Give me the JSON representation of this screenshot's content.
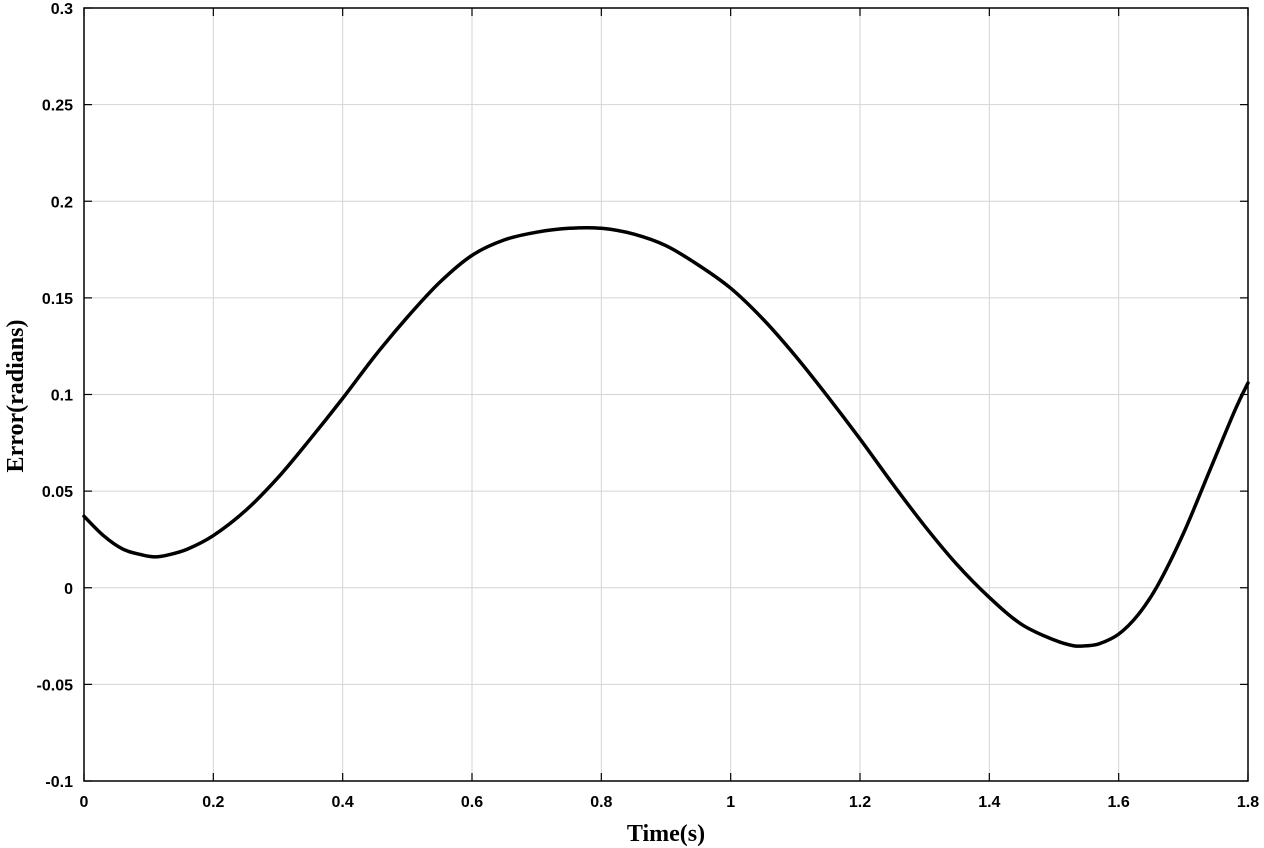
{
  "chart_data": {
    "type": "line",
    "xlabel": "Time(s)",
    "ylabel": "Error(radians)",
    "xlim": [
      0,
      1.8
    ],
    "ylim": [
      -0.1,
      0.3
    ],
    "xticks": [
      0,
      0.2,
      0.4,
      0.6,
      0.8,
      1,
      1.2,
      1.4,
      1.6,
      1.8
    ],
    "xtick_labels": [
      "0",
      "0.2",
      "0.4",
      "0.6",
      "0.8",
      "1",
      "1.2",
      "1.4",
      "1.6",
      "1.8"
    ],
    "yticks": [
      -0.1,
      -0.05,
      0,
      0.05,
      0.1,
      0.15,
      0.2,
      0.25,
      0.3
    ],
    "ytick_labels": [
      "-0.1",
      "-0.05",
      "0",
      "0.05",
      "0.1",
      "0.15",
      "0.2",
      "0.25",
      "0.3"
    ],
    "grid": true,
    "series": [
      {
        "color": "#000000",
        "x": [
          0,
          0.03,
          0.06,
          0.09,
          0.11,
          0.13,
          0.16,
          0.2,
          0.25,
          0.3,
          0.35,
          0.4,
          0.45,
          0.5,
          0.55,
          0.6,
          0.65,
          0.7,
          0.75,
          0.8,
          0.85,
          0.9,
          0.95,
          1.0,
          1.05,
          1.1,
          1.15,
          1.2,
          1.25,
          1.3,
          1.35,
          1.4,
          1.45,
          1.5,
          1.53,
          1.55,
          1.57,
          1.6,
          1.63,
          1.66,
          1.7,
          1.74,
          1.78,
          1.8
        ],
        "y": [
          0.037,
          0.027,
          0.02,
          0.017,
          0.016,
          0.017,
          0.02,
          0.027,
          0.04,
          0.057,
          0.077,
          0.098,
          0.12,
          0.14,
          0.158,
          0.172,
          0.18,
          0.184,
          0.186,
          0.186,
          0.183,
          0.177,
          0.167,
          0.155,
          0.139,
          0.12,
          0.099,
          0.077,
          0.054,
          0.032,
          0.012,
          -0.005,
          -0.019,
          -0.027,
          -0.03,
          -0.03,
          -0.029,
          -0.024,
          -0.014,
          0.001,
          0.028,
          0.06,
          0.092,
          0.106
        ]
      }
    ]
  }
}
